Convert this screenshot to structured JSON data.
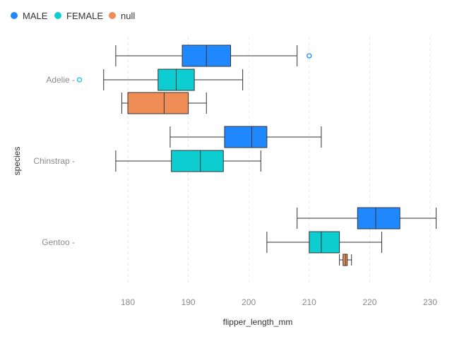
{
  "chart_data": {
    "type": "boxplot",
    "orientation": "horizontal",
    "xlabel": "flipper_length_mm",
    "ylabel": "species",
    "xlim": [
      172,
      231
    ],
    "xticks": [
      180,
      190,
      200,
      210,
      220,
      230
    ],
    "grid": "vertical dashed",
    "legend_position": "top-left",
    "categories": [
      "Adelie",
      "Chinstrap",
      "Gentoo"
    ],
    "series": [
      {
        "name": "MALE",
        "color": "#1f88ff",
        "boxes": [
          {
            "category": "Adelie",
            "min": 178,
            "q1": 189,
            "median": 193,
            "q3": 197,
            "max": 208,
            "outliers": [
              210
            ]
          },
          {
            "category": "Chinstrap",
            "min": 187,
            "q1": 196,
            "median": 200.5,
            "q3": 203,
            "max": 212,
            "outliers": []
          },
          {
            "category": "Gentoo",
            "min": 208,
            "q1": 218,
            "median": 221,
            "q3": 225,
            "max": 231,
            "outliers": []
          }
        ]
      },
      {
        "name": "FEMALE",
        "color": "#0dcdd0",
        "boxes": [
          {
            "category": "Adelie",
            "min": 176,
            "q1": 185,
            "median": 188,
            "q3": 191,
            "max": 199,
            "outliers": [
              172
            ]
          },
          {
            "category": "Chinstrap",
            "min": 178,
            "q1": 187.2,
            "median": 192,
            "q3": 195.8,
            "max": 202,
            "outliers": []
          },
          {
            "category": "Gentoo",
            "min": 203,
            "q1": 210,
            "median": 212,
            "q3": 215,
            "max": 222,
            "outliers": []
          }
        ]
      },
      {
        "name": "null",
        "color": "#f08c55",
        "boxes": [
          {
            "category": "Adelie",
            "min": 179,
            "q1": 180,
            "median": 186,
            "q3": 190,
            "max": 193,
            "outliers": []
          },
          {
            "category": "Gentoo",
            "min": 215,
            "q1": 215.6,
            "median": 216,
            "q3": 216.3,
            "max": 217,
            "outliers": []
          }
        ]
      }
    ]
  }
}
